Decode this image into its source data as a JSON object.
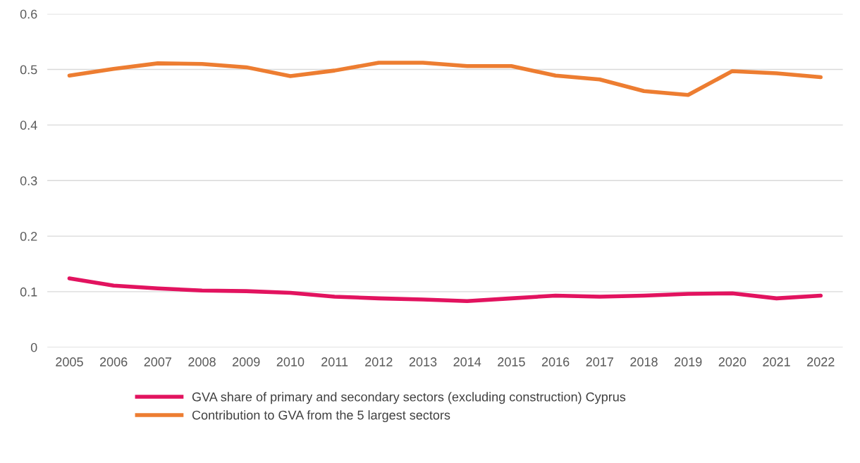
{
  "chart_data": {
    "type": "line",
    "categories": [
      "2005",
      "2006",
      "2007",
      "2008",
      "2009",
      "2010",
      "2011",
      "2012",
      "2013",
      "2014",
      "2015",
      "2016",
      "2017",
      "2018",
      "2019",
      "2020",
      "2021",
      "2022"
    ],
    "series": [
      {
        "name": "GVA share of primary and secondary sectors (excluding construction) Cyprus",
        "color": "#e2135f",
        "values": [
          0.124,
          0.111,
          0.106,
          0.102,
          0.101,
          0.098,
          0.091,
          0.088,
          0.086,
          0.083,
          0.088,
          0.093,
          0.091,
          0.093,
          0.096,
          0.097,
          0.088,
          0.093
        ]
      },
      {
        "name": "Contribution to GVA from the 5 largest sectors",
        "color": "#ed7d31",
        "values": [
          0.489,
          0.501,
          0.511,
          0.51,
          0.504,
          0.488,
          0.498,
          0.512,
          0.512,
          0.506,
          0.506,
          0.489,
          0.482,
          0.461,
          0.454,
          0.497,
          0.493,
          0.486
        ]
      }
    ],
    "ylim": [
      0,
      0.6
    ],
    "yticks": [
      {
        "value": 0,
        "label": "0"
      },
      0.1,
      0.2,
      0.3,
      0.4,
      0.5,
      0.6
    ],
    "grid": "y",
    "legend": "bottom",
    "marker": "none",
    "line_style": "solid"
  }
}
